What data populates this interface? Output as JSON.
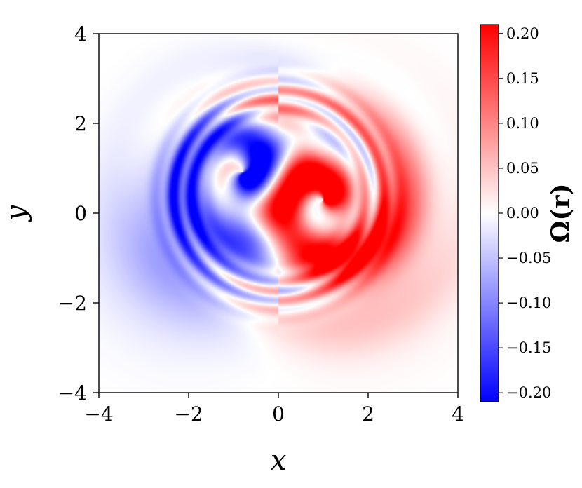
{
  "chart_data": {
    "type": "heatmap",
    "title": "",
    "xlabel": "x",
    "ylabel": "y",
    "xlim": [
      -4,
      4
    ],
    "ylim": [
      -4,
      4
    ],
    "xticks": [
      -4,
      -2,
      0,
      2,
      4
    ],
    "yticks": [
      -4,
      -2,
      0,
      2,
      4
    ],
    "xtick_labels": [
      "−4",
      "−2",
      "0",
      "2",
      "4"
    ],
    "ytick_labels": [
      "−4",
      "−2",
      "0",
      "2",
      "4"
    ],
    "grid": false,
    "colormap": "bwr",
    "colors": {
      "low": "#0000ff",
      "mid": "#ffffff",
      "high": "#ff0000"
    },
    "colorbar": {
      "label": "Ω(r)",
      "range": [
        -0.21,
        0.21
      ],
      "ticks": [
        0.2,
        0.15,
        0.1,
        0.05,
        0.0,
        -0.05,
        -0.1,
        -0.15,
        -0.2
      ],
      "tick_labels": [
        "0.20",
        "0.15",
        "0.10",
        "0.05",
        "0.00",
        "−0.05",
        "−0.10",
        "−0.15",
        "−0.20"
      ]
    },
    "field": {
      "description_type": "two interleaved vorticity spirals",
      "positive_vortex_center": [
        1.0,
        0.3
      ],
      "negative_vortex_center": [
        -0.8,
        0.9
      ],
      "peak_magnitude": 0.21
    }
  }
}
